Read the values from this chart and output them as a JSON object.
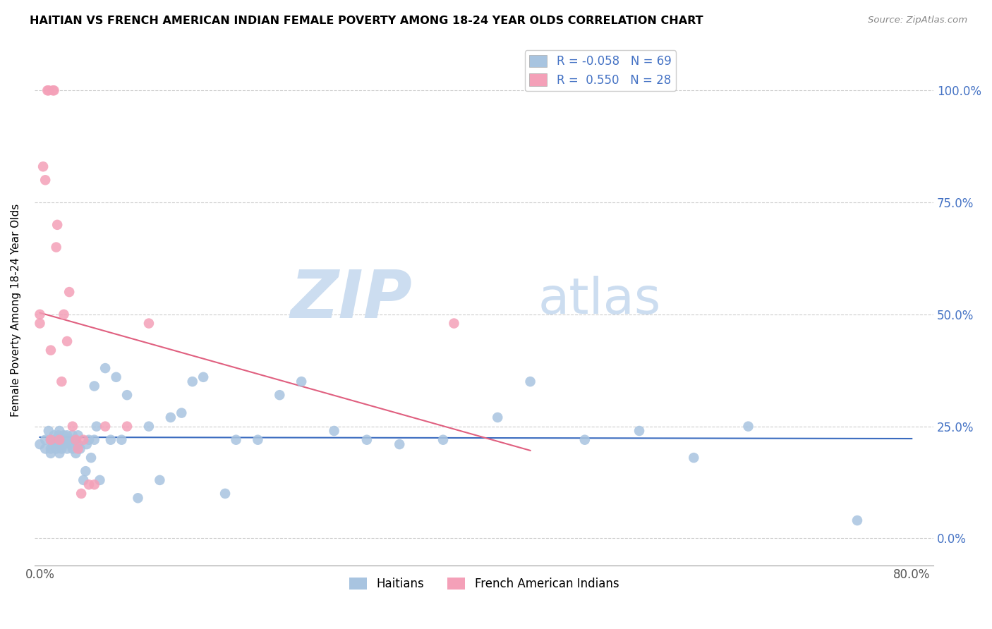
{
  "title": "HAITIAN VS FRENCH AMERICAN INDIAN FEMALE POVERTY AMONG 18-24 YEAR OLDS CORRELATION CHART",
  "source": "Source: ZipAtlas.com",
  "ylabel": "Female Poverty Among 18-24 Year Olds",
  "ylabel_ticks": [
    "0.0%",
    "25.0%",
    "50.0%",
    "75.0%",
    "100.0%"
  ],
  "xlim": [
    -0.005,
    0.82
  ],
  "ylim": [
    -0.06,
    1.08
  ],
  "ytick_vals": [
    0.0,
    0.25,
    0.5,
    0.75,
    1.0
  ],
  "xtick_vals": [
    0.0,
    0.8
  ],
  "xtick_labels": [
    "0.0%",
    "80.0%"
  ],
  "haitian_R": -0.058,
  "haitian_N": 69,
  "french_R": 0.55,
  "french_N": 28,
  "haitian_color": "#a8c4e0",
  "french_color": "#f4a0b8",
  "haitian_line_color": "#3a6bbf",
  "french_line_color": "#e06080",
  "watermark_zip": "ZIP",
  "watermark_atlas": "atlas",
  "watermark_color": "#ccddf0",
  "haitian_x": [
    0.0,
    0.005,
    0.005,
    0.008,
    0.01,
    0.01,
    0.01,
    0.012,
    0.013,
    0.015,
    0.015,
    0.016,
    0.017,
    0.018,
    0.018,
    0.02,
    0.02,
    0.02,
    0.022,
    0.022,
    0.024,
    0.025,
    0.025,
    0.027,
    0.028,
    0.03,
    0.03,
    0.032,
    0.033,
    0.035,
    0.035,
    0.037,
    0.04,
    0.042,
    0.043,
    0.045,
    0.047,
    0.05,
    0.05,
    0.052,
    0.055,
    0.06,
    0.065,
    0.07,
    0.075,
    0.08,
    0.09,
    0.1,
    0.11,
    0.12,
    0.13,
    0.14,
    0.15,
    0.17,
    0.18,
    0.2,
    0.22,
    0.24,
    0.27,
    0.3,
    0.33,
    0.37,
    0.42,
    0.45,
    0.5,
    0.55,
    0.6,
    0.65,
    0.75
  ],
  "haitian_y": [
    0.21,
    0.22,
    0.2,
    0.24,
    0.2,
    0.22,
    0.19,
    0.21,
    0.23,
    0.22,
    0.2,
    0.21,
    0.23,
    0.19,
    0.24,
    0.2,
    0.22,
    0.21,
    0.23,
    0.21,
    0.22,
    0.2,
    0.23,
    0.22,
    0.21,
    0.2,
    0.23,
    0.22,
    0.19,
    0.21,
    0.23,
    0.2,
    0.13,
    0.15,
    0.21,
    0.22,
    0.18,
    0.34,
    0.22,
    0.25,
    0.13,
    0.38,
    0.22,
    0.36,
    0.22,
    0.32,
    0.09,
    0.25,
    0.13,
    0.27,
    0.28,
    0.35,
    0.36,
    0.1,
    0.22,
    0.22,
    0.32,
    0.35,
    0.24,
    0.22,
    0.21,
    0.22,
    0.27,
    0.35,
    0.22,
    0.24,
    0.18,
    0.25,
    0.04
  ],
  "french_x": [
    0.0,
    0.0,
    0.003,
    0.005,
    0.007,
    0.008,
    0.01,
    0.01,
    0.012,
    0.013,
    0.015,
    0.016,
    0.018,
    0.02,
    0.022,
    0.025,
    0.027,
    0.03,
    0.033,
    0.035,
    0.038,
    0.04,
    0.045,
    0.05,
    0.06,
    0.08,
    0.1,
    0.38
  ],
  "french_y": [
    0.48,
    0.5,
    0.83,
    0.8,
    1.0,
    1.0,
    0.22,
    0.42,
    1.0,
    1.0,
    0.65,
    0.7,
    0.22,
    0.35,
    0.5,
    0.44,
    0.55,
    0.25,
    0.22,
    0.2,
    0.1,
    0.22,
    0.12,
    0.12,
    0.25,
    0.25,
    0.48,
    0.48
  ]
}
